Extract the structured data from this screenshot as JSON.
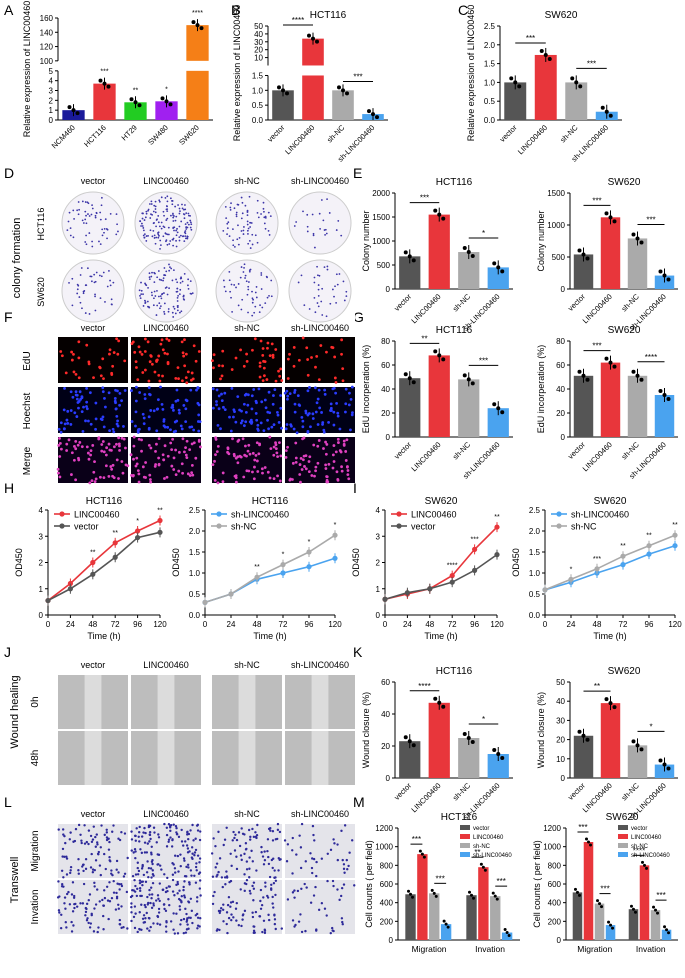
{
  "panel_letters": [
    "A",
    "B",
    "C",
    "D",
    "E",
    "F",
    "G",
    "H",
    "I",
    "J",
    "K",
    "L",
    "M"
  ],
  "colors": {
    "gray_dark": "#555555",
    "red": "#e8363b",
    "gray_light": "#aaaaaa",
    "blue": "#4aa3ef",
    "navy": "#1a1a9a",
    "orange": "#f57f17",
    "green": "#22cc22",
    "purple": "#a020f0"
  },
  "conditions": [
    "vector",
    "LINC00460",
    "sh-NC",
    "sh-LINC00460"
  ],
  "row_labels": {
    "colony": [
      "HCT116",
      "SW620"
    ],
    "colony_side": "colony formation",
    "edu": [
      "EdU",
      "Hoechst",
      "Merge"
    ],
    "wound": [
      "0h",
      "48h"
    ],
    "wound_side": "Wound healing",
    "transwell": [
      "Migration",
      "Invation"
    ],
    "transwell_side": "Transwell"
  },
  "chart_data": [
    {
      "id": "A",
      "type": "bar",
      "categories": [
        "NCM460",
        "HCT116",
        "HT29",
        "SW480",
        "SW620"
      ],
      "values": [
        1.0,
        3.7,
        1.8,
        1.9,
        150
      ],
      "colors": [
        "#1a1a9a",
        "#e8363b",
        "#22cc22",
        "#a020f0",
        "#f57f17"
      ],
      "ylabel": "Relative expression of LINC00460",
      "yticks_lower": [
        "0",
        "1",
        "2",
        "3",
        "4",
        "5"
      ],
      "yticks_upper": [
        "100",
        "120",
        "140",
        "160"
      ],
      "sig": [
        "",
        "***",
        "**",
        "*",
        "****"
      ]
    },
    {
      "id": "B",
      "type": "bar",
      "title": "HCT116",
      "categories": [
        "vector",
        "LINC00460",
        "sh-NC",
        "sh-LINC00460"
      ],
      "values": [
        1.0,
        34,
        1.0,
        0.2
      ],
      "ylabel": "Relative expression of LINC00460",
      "yticks_lower": [
        "0.0",
        "0.5",
        "1.0",
        "1.5"
      ],
      "yticks_upper": [
        "10",
        "20",
        "30",
        "40",
        "50"
      ],
      "sig_pairs": [
        "****",
        "***"
      ]
    },
    {
      "id": "C",
      "type": "bar",
      "title": "SW620",
      "categories": [
        "vector",
        "LINC00460",
        "sh-NC",
        "sh-LINC00460"
      ],
      "values": [
        1.0,
        1.73,
        1.0,
        0.22
      ],
      "ylabel": "Relative expression of LINC00460",
      "ylim": [
        0,
        2.5
      ],
      "yticks": [
        "0.0",
        "0.5",
        "1.0",
        "1.5",
        "2.0",
        "2.5"
      ],
      "sig_pairs": [
        "***",
        "***"
      ]
    },
    {
      "id": "E1",
      "type": "bar",
      "title": "HCT116",
      "categories": [
        "vector",
        "LINC00460",
        "sh-NC",
        "sh-LINC00460"
      ],
      "values": [
        680,
        1550,
        770,
        450
      ],
      "ylabel": "Colony number",
      "ylim": [
        0,
        2000
      ],
      "yticks": [
        "0",
        "500",
        "1000",
        "1500",
        "2000"
      ],
      "sig_pairs": [
        "***",
        "*"
      ]
    },
    {
      "id": "E2",
      "type": "bar",
      "title": "SW620",
      "categories": [
        "vector",
        "LINC00460",
        "sh-NC",
        "sh-LINC00460"
      ],
      "values": [
        540,
        1120,
        790,
        210
      ],
      "ylabel": "Colony number",
      "ylim": [
        0,
        1500
      ],
      "yticks": [
        "0",
        "500",
        "1000",
        "1500"
      ],
      "sig_pairs": [
        "***",
        "***"
      ]
    },
    {
      "id": "G1",
      "type": "bar",
      "title": "HCT116",
      "categories": [
        "vector",
        "LINC00460",
        "sh-NC",
        "sh-LINC00460"
      ],
      "values": [
        49,
        68,
        48,
        24
      ],
      "ylabel": "EdU incorperation (%)",
      "ylim": [
        0,
        80
      ],
      "yticks": [
        "0",
        "20",
        "40",
        "60",
        "80"
      ],
      "sig_pairs": [
        "**",
        "***"
      ]
    },
    {
      "id": "G2",
      "type": "bar",
      "title": "SW620",
      "categories": [
        "vector",
        "LINC00460",
        "sh-NC",
        "sh-LINC00460"
      ],
      "values": [
        51,
        62,
        51,
        35
      ],
      "ylabel": "EdU incorperation (%)",
      "ylim": [
        0,
        80
      ],
      "yticks": [
        "0",
        "20",
        "40",
        "60",
        "80"
      ],
      "sig_pairs": [
        "***",
        "****"
      ]
    },
    {
      "id": "H1",
      "type": "line",
      "title": "HCT116",
      "x": [
        0,
        24,
        48,
        72,
        96,
        120
      ],
      "xlabel": "Time (h)",
      "ylabel": "OD450",
      "ylim": [
        0,
        4
      ],
      "yticks": [
        "0",
        "1",
        "2",
        "3",
        "4"
      ],
      "series": [
        {
          "name": "LINC00460",
          "values": [
            0.55,
            1.2,
            2.0,
            2.75,
            3.2,
            3.6
          ],
          "color": "#e8363b"
        },
        {
          "name": "vector",
          "values": [
            0.55,
            1.0,
            1.55,
            2.2,
            2.95,
            3.15
          ],
          "color": "#555555"
        }
      ],
      "sig": [
        "",
        "",
        "**",
        "**",
        "*",
        "**"
      ]
    },
    {
      "id": "H2",
      "type": "line",
      "title": "HCT116",
      "x": [
        0,
        24,
        48,
        72,
        96,
        120
      ],
      "xlabel": "Time (h)",
      "ylabel": "OD450",
      "ylim": [
        0,
        2.5
      ],
      "yticks": [
        "0.0",
        "0.5",
        "1.0",
        "1.5",
        "2.0",
        "2.5"
      ],
      "series": [
        {
          "name": "sh-LINC00460",
          "values": [
            0.3,
            0.5,
            0.85,
            1.0,
            1.15,
            1.35
          ],
          "color": "#4aa3ef"
        },
        {
          "name": "sh-NC",
          "values": [
            0.3,
            0.5,
            0.9,
            1.2,
            1.5,
            1.9
          ],
          "color": "#aaaaaa"
        }
      ],
      "sig": [
        "",
        "",
        "**",
        "*",
        "*",
        "*"
      ]
    },
    {
      "id": "I1",
      "type": "line",
      "title": "SW620",
      "x": [
        0,
        24,
        48,
        72,
        96,
        120
      ],
      "xlabel": "Time (h)",
      "ylabel": "OD450",
      "ylim": [
        0,
        4
      ],
      "yticks": [
        "0",
        "1",
        "2",
        "3",
        "4"
      ],
      "series": [
        {
          "name": "LINC00460",
          "values": [
            0.6,
            0.8,
            1.0,
            1.5,
            2.5,
            3.35
          ],
          "color": "#e8363b"
        },
        {
          "name": "vector",
          "values": [
            0.6,
            0.85,
            1.0,
            1.25,
            1.7,
            2.3
          ],
          "color": "#555555"
        }
      ],
      "sig": [
        "",
        "",
        "",
        "****",
        "***",
        "**"
      ]
    },
    {
      "id": "I2",
      "type": "line",
      "title": "SW620",
      "x": [
        0,
        24,
        48,
        72,
        96,
        120
      ],
      "xlabel": "Time (h)",
      "ylabel": "OD450",
      "ylim": [
        0,
        2.5
      ],
      "yticks": [
        "0.0",
        "0.5",
        "1.0",
        "1.5",
        "2.0",
        "2.5"
      ],
      "series": [
        {
          "name": "sh-LINC00460",
          "values": [
            0.6,
            0.78,
            1.0,
            1.2,
            1.45,
            1.65
          ],
          "color": "#4aa3ef"
        },
        {
          "name": "sh-NC",
          "values": [
            0.6,
            0.85,
            1.1,
            1.4,
            1.65,
            1.9
          ],
          "color": "#aaaaaa"
        }
      ],
      "sig": [
        "",
        "*",
        "***",
        "**",
        "**",
        "**"
      ]
    },
    {
      "id": "K1",
      "type": "bar",
      "title": "HCT116",
      "categories": [
        "vector",
        "LINC00460",
        "sh-NC",
        "sh-LINC00460"
      ],
      "values": [
        23,
        47,
        25,
        15
      ],
      "ylabel": "Wound closure (%)",
      "ylim": [
        0,
        60
      ],
      "yticks": [
        "0",
        "20",
        "40",
        "60"
      ],
      "sig_pairs": [
        "****",
        "*"
      ]
    },
    {
      "id": "K2",
      "type": "bar",
      "title": "SW620",
      "categories": [
        "vector",
        "LINC00460",
        "sh-NC",
        "sh-LINC00460"
      ],
      "values": [
        22,
        39,
        17,
        7
      ],
      "ylabel": "Wound closure (%)",
      "ylim": [
        0,
        50
      ],
      "yticks": [
        "0",
        "10",
        "20",
        "30",
        "40",
        "50"
      ],
      "sig_pairs": [
        "**",
        "*"
      ]
    },
    {
      "id": "M1",
      "type": "bar",
      "title": "HCT116",
      "categories": [
        "Migration",
        "Invation"
      ],
      "series": [
        {
          "name": "vector",
          "values": [
            490,
            480
          ],
          "color": "#555555"
        },
        {
          "name": "LINC00460",
          "values": [
            920,
            780
          ],
          "color": "#e8363b"
        },
        {
          "name": "sh-NC",
          "values": [
            500,
            470
          ],
          "color": "#aaaaaa"
        },
        {
          "name": "sh-LINC00460",
          "values": [
            170,
            80
          ],
          "color": "#4aa3ef"
        }
      ],
      "ylabel": "Cell counts ( per field)",
      "ylim": [
        0,
        1200
      ],
      "yticks": [
        "0",
        "200",
        "400",
        "600",
        "800",
        "1000",
        "1200"
      ],
      "sig": [
        [
          "***",
          "***"
        ],
        [
          "**",
          "***"
        ]
      ]
    },
    {
      "id": "M2",
      "type": "bar",
      "title": "SW620",
      "categories": [
        "Migration",
        "Invation"
      ],
      "series": [
        {
          "name": "vector",
          "values": [
            510,
            330
          ],
          "color": "#555555"
        },
        {
          "name": "LINC00460",
          "values": [
            1050,
            800
          ],
          "color": "#e8363b"
        },
        {
          "name": "sh-NC",
          "values": [
            390,
            320
          ],
          "color": "#aaaaaa"
        },
        {
          "name": "sh-LINC00460",
          "values": [
            160,
            110
          ],
          "color": "#4aa3ef"
        }
      ],
      "ylabel": "Cell counts ( per field)",
      "ylim": [
        0,
        1200
      ],
      "yticks": [
        "0",
        "200",
        "400",
        "600",
        "800",
        "1000",
        "1200"
      ],
      "sig": [
        [
          "***",
          "***"
        ],
        [
          "****",
          "***"
        ]
      ]
    }
  ]
}
